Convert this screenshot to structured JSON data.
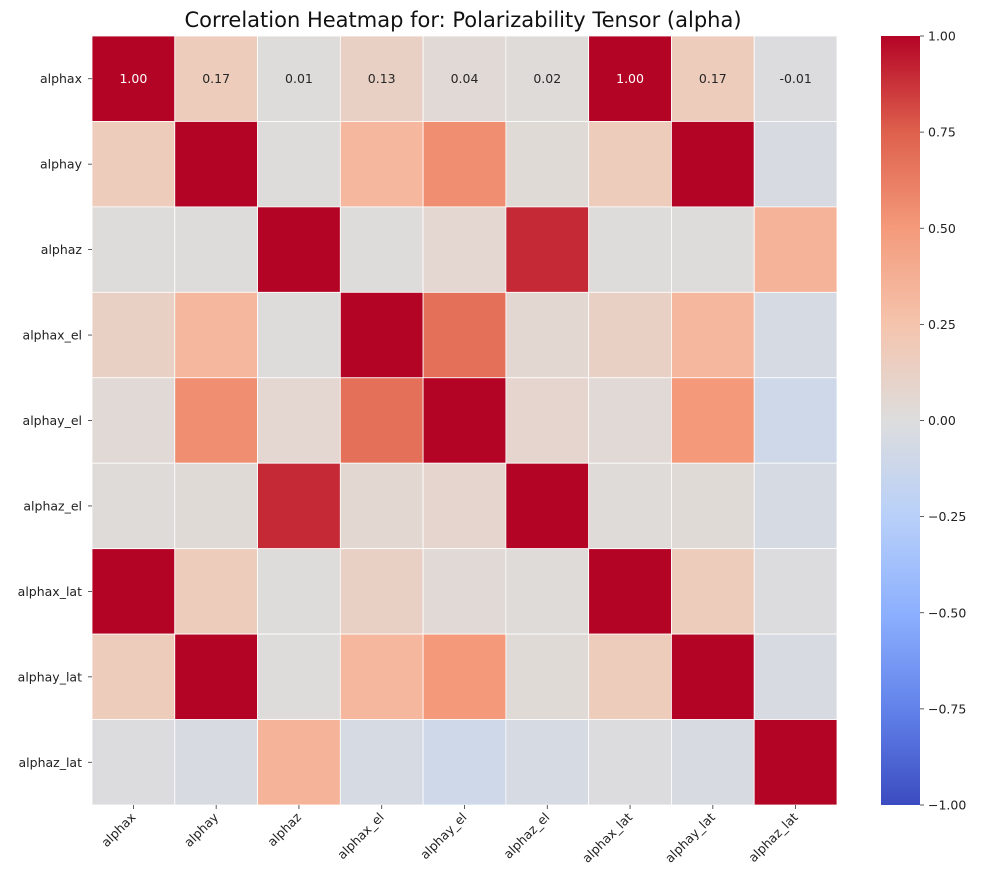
{
  "chart_data": {
    "type": "heatmap",
    "title": "Correlation Heatmap for: Polarizability Tensor (alpha)",
    "xlabel": "",
    "ylabel": "",
    "x_categories": [
      "alphax",
      "alphay",
      "alphaz",
      "alphax_el",
      "alphay_el",
      "alphaz_el",
      "alphax_lat",
      "alphay_lat",
      "alphaz_lat"
    ],
    "y_categories": [
      "alphax",
      "alphay",
      "alphaz",
      "alphax_el",
      "alphay_el",
      "alphaz_el",
      "alphax_lat",
      "alphay_lat",
      "alphaz_lat"
    ],
    "values": [
      [
        1.0,
        0.17,
        0.01,
        0.13,
        0.04,
        0.02,
        1.0,
        0.17,
        -0.01
      ],
      [
        0.17,
        1.0,
        0.01,
        0.33,
        0.55,
        0.03,
        0.17,
        1.0,
        -0.04
      ],
      [
        0.01,
        0.01,
        1.0,
        0.01,
        0.07,
        0.9,
        0.01,
        0.01,
        0.35
      ],
      [
        0.13,
        0.33,
        0.01,
        1.0,
        0.68,
        0.06,
        0.13,
        0.33,
        -0.05
      ],
      [
        0.04,
        0.55,
        0.07,
        0.68,
        1.0,
        0.08,
        0.04,
        0.5,
        -0.1
      ],
      [
        0.02,
        0.03,
        0.9,
        0.06,
        0.08,
        1.0,
        0.02,
        0.03,
        -0.05
      ],
      [
        1.0,
        0.17,
        0.01,
        0.13,
        0.04,
        0.02,
        1.0,
        0.17,
        -0.01
      ],
      [
        0.17,
        1.0,
        0.01,
        0.33,
        0.5,
        0.03,
        0.17,
        1.0,
        -0.04
      ],
      [
        -0.01,
        -0.04,
        0.35,
        -0.05,
        -0.1,
        -0.05,
        -0.01,
        -0.04,
        1.0
      ]
    ],
    "annotated_row": 0,
    "annotations": [
      "1.00",
      "0.17",
      "0.01",
      "0.13",
      "0.04",
      "0.02",
      "1.00",
      "0.17",
      "-0.01"
    ],
    "vmin": -1.0,
    "vmax": 1.0,
    "colormap": "coolwarm",
    "grid": true,
    "grid_color": "#ffffff",
    "colorbar": {
      "placement": "right",
      "ticks": [
        1.0,
        0.75,
        0.5,
        0.25,
        0.0,
        -0.25,
        -0.5,
        -0.75,
        -1.0
      ],
      "tick_labels": [
        "1.00",
        "0.75",
        "0.50",
        "0.25",
        "0.00",
        "−0.25",
        "−0.50",
        "−0.75",
        "−1.00"
      ]
    }
  }
}
